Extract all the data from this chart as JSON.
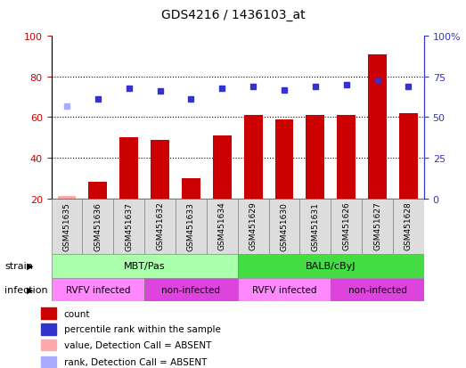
{
  "title": "GDS4216 / 1436103_at",
  "samples": [
    "GSM451635",
    "GSM451636",
    "GSM451637",
    "GSM451632",
    "GSM451633",
    "GSM451634",
    "GSM451629",
    "GSM451630",
    "GSM451631",
    "GSM451626",
    "GSM451627",
    "GSM451628"
  ],
  "bar_values": [
    21,
    28,
    50,
    49,
    30,
    51,
    61,
    59,
    61,
    61,
    91,
    62
  ],
  "bar_absent": [
    true,
    false,
    false,
    false,
    false,
    false,
    false,
    false,
    false,
    false,
    false,
    false
  ],
  "percentile_values": [
    57,
    61,
    68,
    66,
    61,
    68,
    69,
    67,
    69,
    70,
    73,
    69
  ],
  "percentile_absent": [
    true,
    false,
    false,
    false,
    false,
    false,
    false,
    false,
    false,
    false,
    false,
    false
  ],
  "ylim_left": [
    20,
    100
  ],
  "ylim_right": [
    0,
    100
  ],
  "yticks_left": [
    20,
    40,
    60,
    80,
    100
  ],
  "yticks_right": [
    0,
    25,
    50,
    75,
    100
  ],
  "ytick_labels_left": [
    "20",
    "40",
    "60",
    "80",
    "100"
  ],
  "ytick_labels_right": [
    "0",
    "25",
    "50",
    "75",
    "100%"
  ],
  "bar_color": "#cc0000",
  "bar_absent_color": "#ffaaaa",
  "dot_color": "#3333cc",
  "dot_absent_color": "#aaaaff",
  "strain_groups": [
    {
      "label": "MBT/Pas",
      "start": 0,
      "end": 6,
      "color": "#aaffaa"
    },
    {
      "label": "BALB/cByJ",
      "start": 6,
      "end": 12,
      "color": "#44dd44"
    }
  ],
  "infection_groups": [
    {
      "label": "RVFV infected",
      "start": 0,
      "end": 3,
      "color": "#ff88ff"
    },
    {
      "label": "non-infected",
      "start": 3,
      "end": 6,
      "color": "#dd44dd"
    },
    {
      "label": "RVFV infected",
      "start": 6,
      "end": 9,
      "color": "#ff88ff"
    },
    {
      "label": "non-infected",
      "start": 9,
      "end": 12,
      "color": "#dd44dd"
    }
  ],
  "legend_items": [
    {
      "label": "count",
      "color": "#cc0000"
    },
    {
      "label": "percentile rank within the sample",
      "color": "#3333cc"
    },
    {
      "label": "value, Detection Call = ABSENT",
      "color": "#ffaaaa"
    },
    {
      "label": "rank, Detection Call = ABSENT",
      "color": "#aaaaff"
    }
  ],
  "axis_left_color": "#cc0000",
  "axis_right_color": "#3333cc"
}
